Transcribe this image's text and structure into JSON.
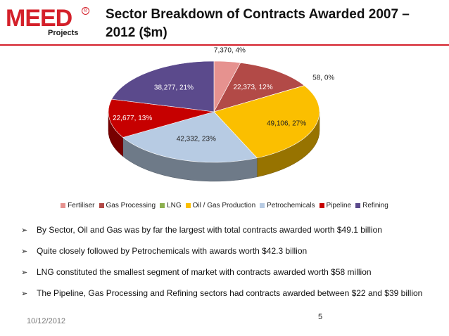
{
  "logo": {
    "word": "MEED",
    "sub": "Projects",
    "reg": "®"
  },
  "title": "Sector Breakdown of Contracts Awarded 2007 – 2012 ($m)",
  "chart_data": {
    "type": "pie",
    "title": "",
    "categories": [
      "Fertiliser",
      "Gas Processing",
      "LNG",
      "Oil / Gas Production",
      "Petrochemicals",
      "Pipeline",
      "Refining"
    ],
    "values": [
      7370,
      22373,
      58,
      49106,
      42332,
      22677,
      38277
    ],
    "percents": [
      4,
      12,
      0,
      27,
      23,
      13,
      21
    ],
    "data_labels": [
      "7,370, 4%",
      "22,373, 12%",
      "58, 0%",
      "49,106, 27%",
      "42,332, 23%",
      "22,677, 13%",
      "38,277, 21%"
    ],
    "colors": [
      "#e6928f",
      "#b24a47",
      "#8cb04f",
      "#fbbf00",
      "#b7cbe3",
      "#c60000",
      "#5b4a8c"
    ],
    "legend_position": "bottom",
    "style": "3d"
  },
  "bullets": [
    "By Sector, Oil and Gas  was by far the largest with total contracts awarded worth $49.1 billion",
    "Quite closely followed by Petrochemicals  with awards worth $42.3 billion",
    "LNG constituted the smallest segment of market with contracts awarded worth $58 million",
    "The Pipeline, Gas Processing and Refining sectors had contracts awarded between $22 and $39 billion"
  ],
  "footer": {
    "date": "10/12/2012",
    "page": "5"
  }
}
